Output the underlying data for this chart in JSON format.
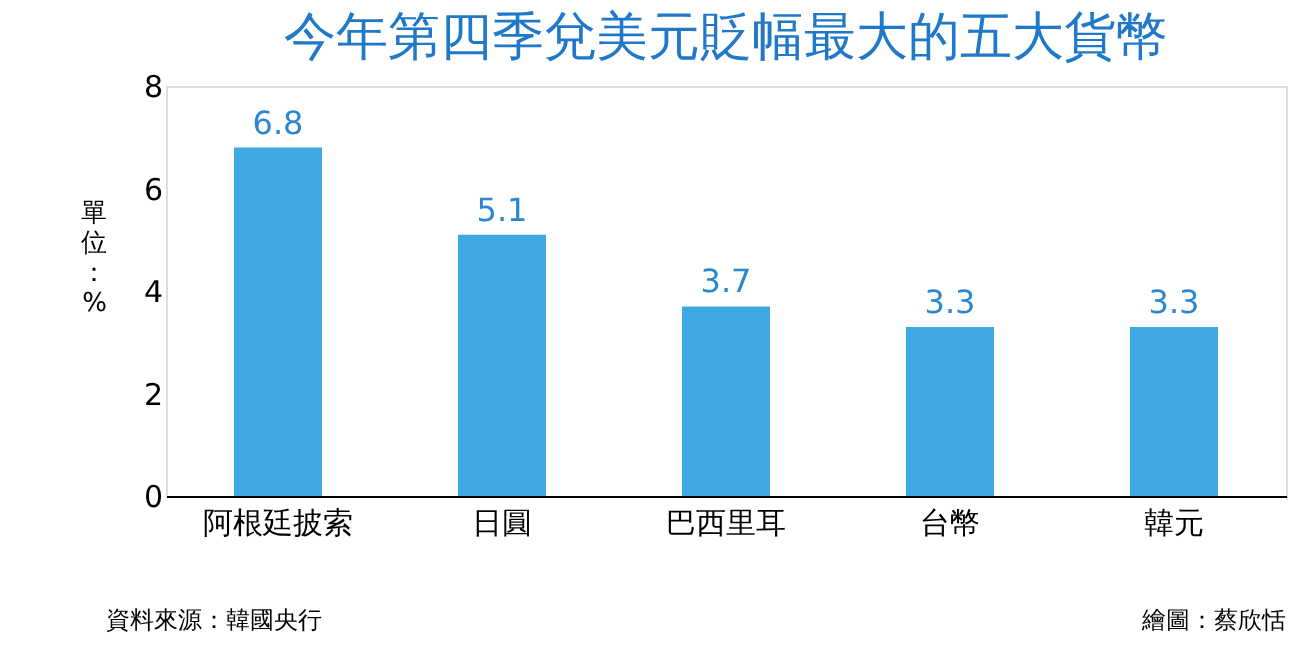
{
  "chart_data": {
    "type": "bar",
    "title": "今年第四季兌美元貶幅最大的五大貨幣",
    "ylabel": "單位：%",
    "categories": [
      "阿根廷披索",
      "日圓",
      "巴西里耳",
      "台幣",
      "韓元"
    ],
    "values": [
      6.8,
      5.1,
      3.7,
      3.3,
      3.3
    ],
    "color": "#3ea8e2",
    "ylim": [
      0,
      8
    ],
    "yticks": [
      0,
      2,
      4,
      6,
      8
    ],
    "grid": false,
    "data_labels": true,
    "annotations": [
      "資料來源：韓國央行",
      "繪圖：蔡欣恬"
    ]
  }
}
